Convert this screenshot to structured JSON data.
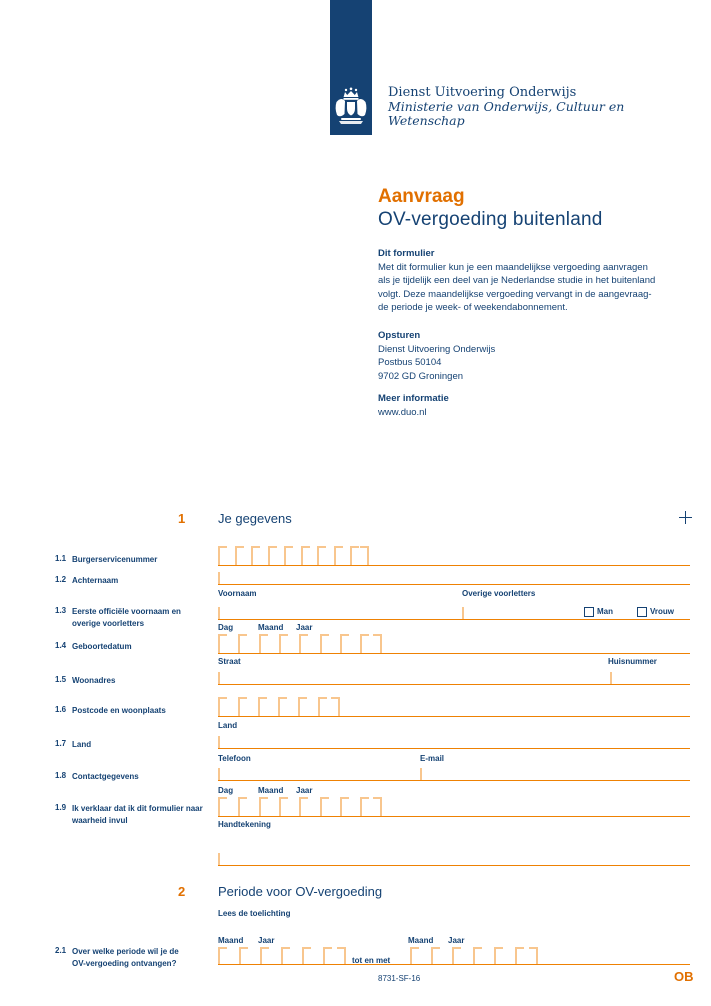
{
  "colors": {
    "blue": "#154273",
    "orange": "#e17000",
    "line": "#ee8103",
    "tick": "#f8c68e"
  },
  "logo": {
    "org": "Dienst Uitvoering Onderwijs",
    "ministry_line1": "Ministerie van Onderwijs, Cultuur en",
    "ministry_line2": "Wetenschap",
    "crest": "rijksoverheid-coat-of-arms"
  },
  "title": {
    "kicker": "Aanvraag",
    "name": "OV-vergoeding buitenland"
  },
  "intro": {
    "heading": "Dit formulier",
    "lines": [
      "Met dit formulier kun je een maandelijkse vergoeding aanvragen",
      "als je tijdelijk een deel van je Nederlandse studie in het buitenland",
      "volgt. Deze maandelijkse vergoeding vervangt in de aangevraag-",
      "de periode je week- of weekendabonnement."
    ]
  },
  "send": {
    "heading": "Opsturen",
    "lines": [
      "Dienst Uitvoering Onderwijs",
      "Postbus 50104",
      "9702 GD Groningen"
    ]
  },
  "info": {
    "heading": "Meer informatie",
    "url": "www.duo.nl"
  },
  "s1": {
    "num": "1",
    "title": "Je gegevens",
    "fields": [
      {
        "num": "1.1",
        "label": "Burgerservicenummer"
      },
      {
        "num": "1.2",
        "label": "Achternaam"
      },
      {
        "num": "1.3",
        "label": "Eerste officiële voornaam en\noverige voorletters"
      },
      {
        "num": "1.4",
        "label": "Geboortedatum"
      },
      {
        "num": "1.5",
        "label": "Woonadres"
      },
      {
        "num": "1.6",
        "label": "Postcode en woonplaats"
      },
      {
        "num": "1.7",
        "label": "Land"
      },
      {
        "num": "1.8",
        "label": "Contactgegevens"
      },
      {
        "num": "1.9",
        "label": "Ik verklaar dat ik dit formulier naar\nwaarheid invul"
      }
    ]
  },
  "labels": {
    "voornaam": "Voornaam",
    "overige": "Overige voorletters",
    "man": "Man",
    "vrouw": "Vrouw",
    "dag": "Dag",
    "maand": "Maand",
    "jaar": "Jaar",
    "straat": "Straat",
    "huisnummer": "Huisnummer",
    "land": "Land",
    "telefoon": "Telefoon",
    "email": "E-mail",
    "handtekening": "Handtekening"
  },
  "s2": {
    "num": "2",
    "title": "Periode voor OV-vergoeding",
    "note": "Lees de toelichting",
    "field": {
      "num": "2.1",
      "label": "Over welke periode wil je de\nOV-vergoeding ontvangen?"
    },
    "between": "tot en met"
  },
  "footer": {
    "form_code": "8731-SF-16",
    "page_code": "OB"
  }
}
